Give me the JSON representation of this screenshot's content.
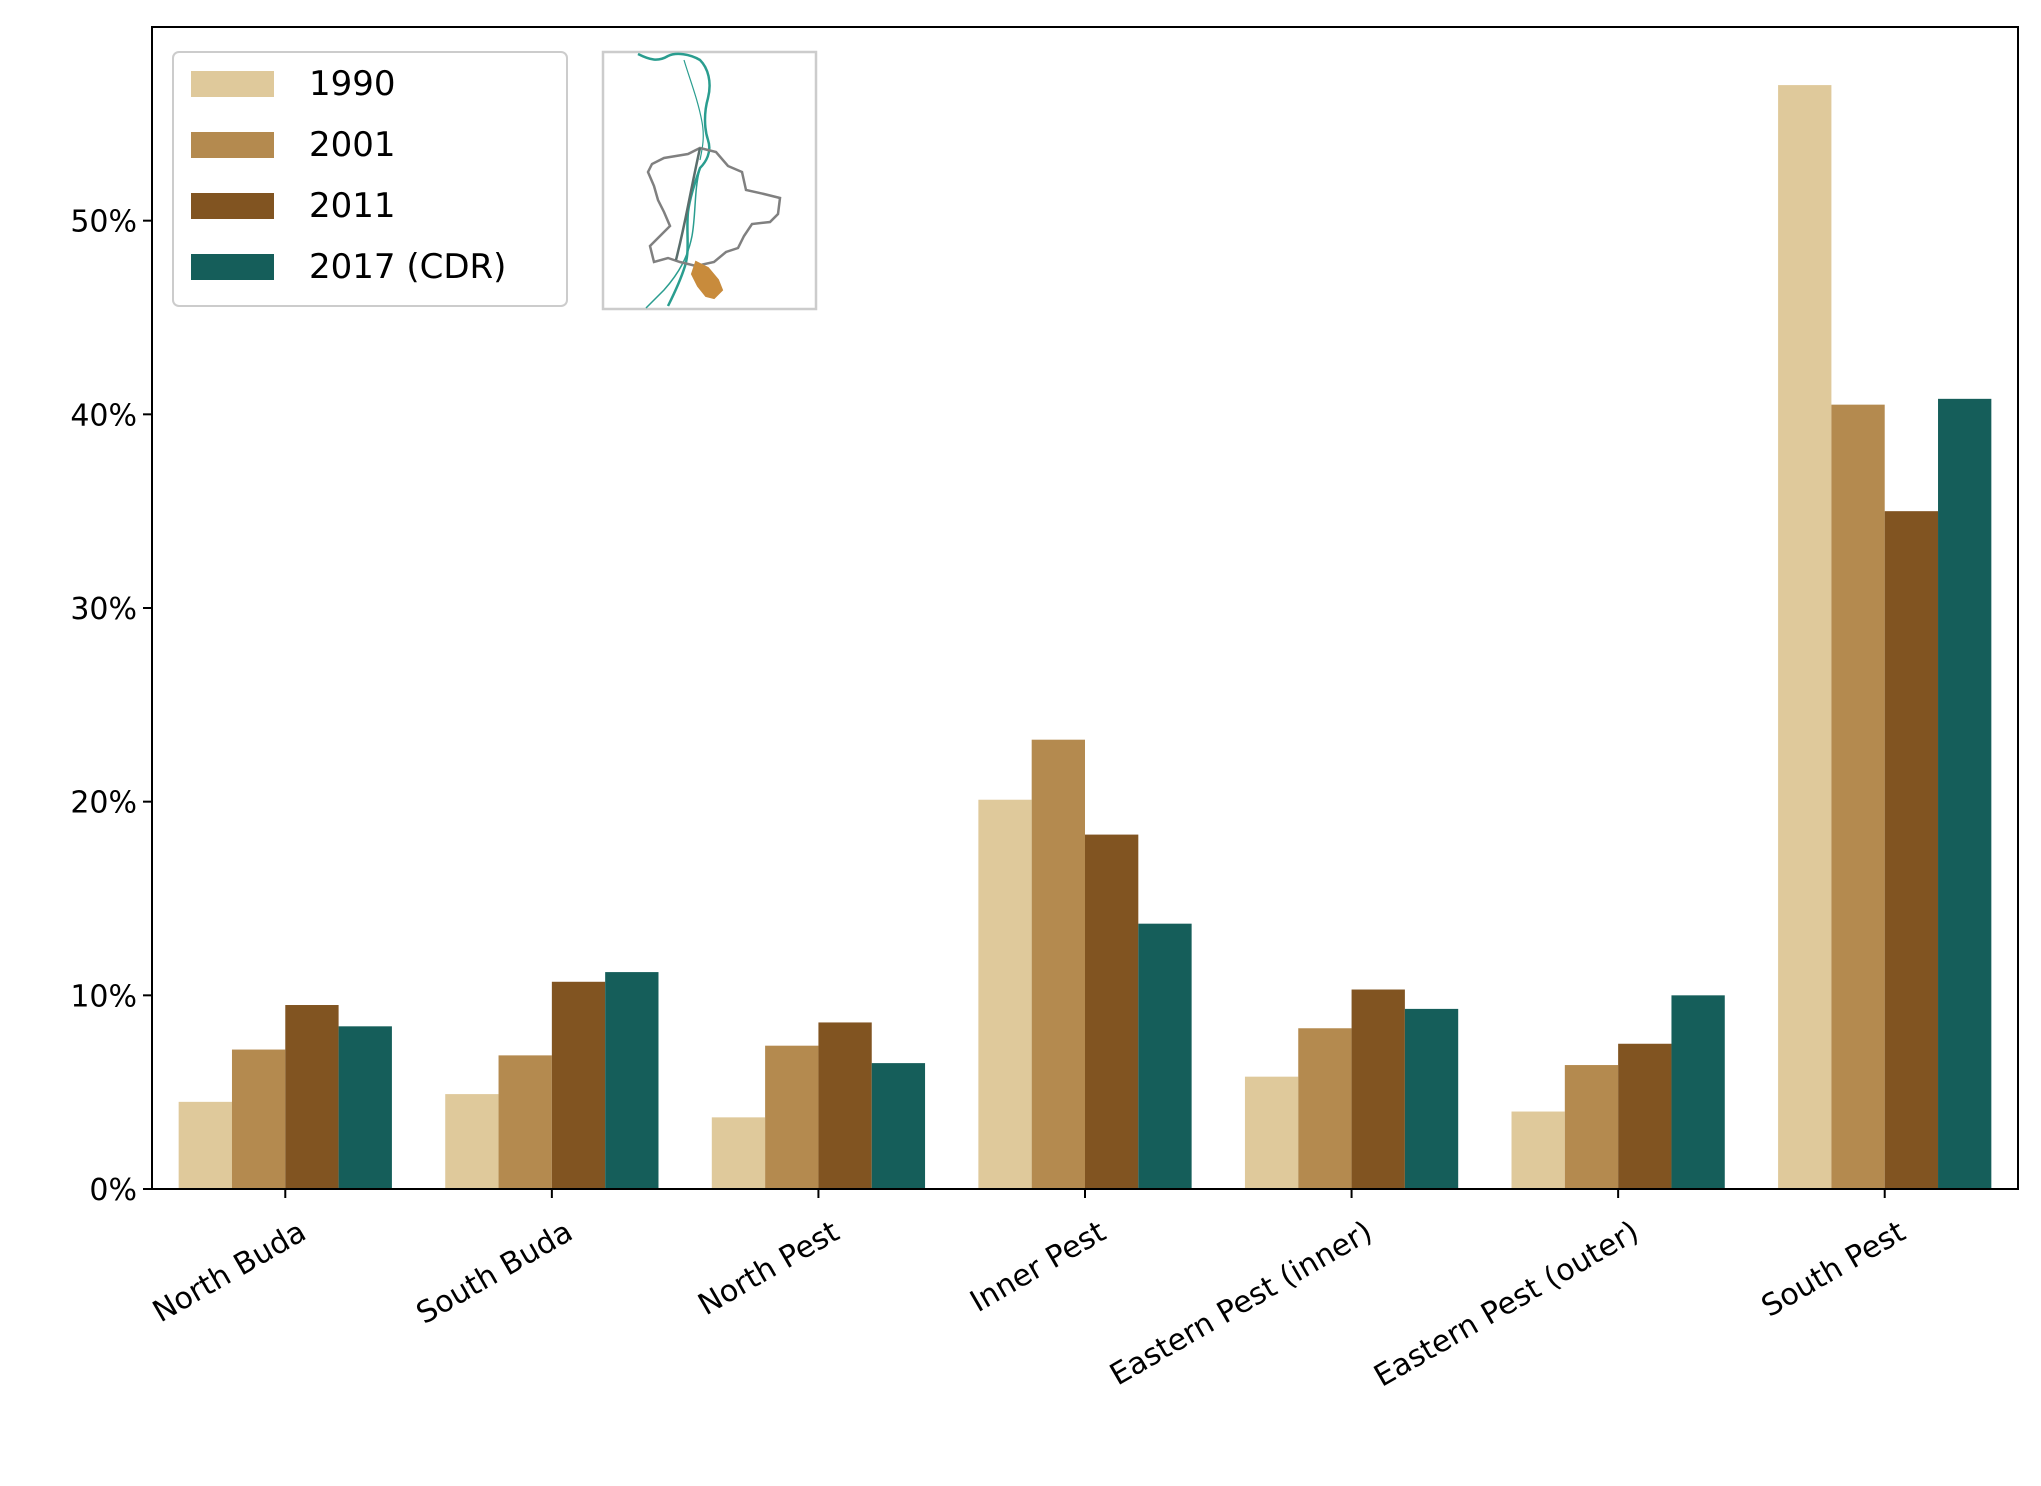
{
  "chart_data": {
    "type": "bar",
    "title": "",
    "xlabel": "",
    "ylabel": "",
    "ylim": [
      0,
      60
    ],
    "yticks": [
      0,
      10,
      20,
      30,
      40,
      50
    ],
    "ytick_labels": [
      "0%",
      "10%",
      "20%",
      "30%",
      "40%",
      "50%"
    ],
    "grid": false,
    "legend_position": "top-left",
    "categories": [
      "North Buda",
      "South Buda",
      "North Pest",
      "Inner Pest",
      "Eastern Pest (inner)",
      "Eastern Pest (outer)",
      "South Pest"
    ],
    "series": [
      {
        "name": "1990",
        "color": "#dfc99b",
        "values": [
          4.5,
          4.9,
          3.7,
          20.1,
          5.8,
          4.0,
          57.0
        ]
      },
      {
        "name": "2001",
        "color": "#b48a4f",
        "values": [
          7.2,
          6.9,
          7.4,
          23.2,
          8.3,
          6.4,
          40.5
        ]
      },
      {
        "name": "2011",
        "color": "#815421",
        "values": [
          9.5,
          10.7,
          8.6,
          18.3,
          10.3,
          7.5,
          35.0
        ]
      },
      {
        "name": "2017 (CDR)",
        "color": "#155e5a",
        "values": [
          8.4,
          11.2,
          6.5,
          13.7,
          9.3,
          10.0,
          40.8
        ]
      }
    ],
    "inset_map": {
      "description_icon": "budapest-map-icon",
      "highlight_color": "#c88b3c",
      "boundary_color": "#808080",
      "river_color": "#2a9d8f"
    }
  }
}
